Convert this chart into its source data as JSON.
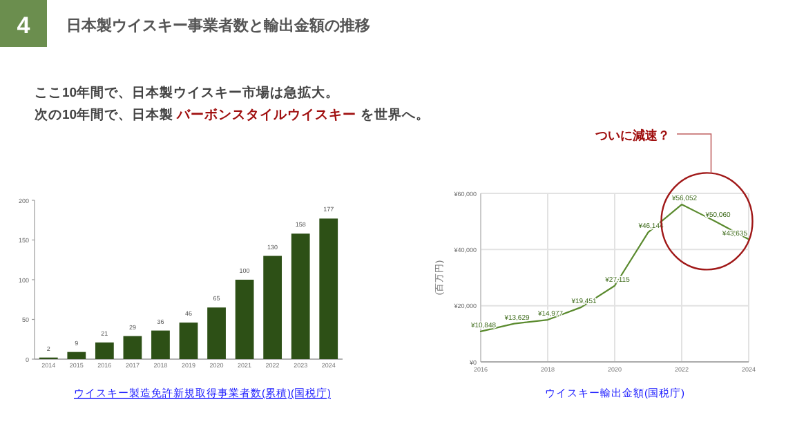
{
  "chart_data": [
    {
      "type": "bar",
      "title": "日本製ウイスキー事業者数と輸出金額の推移",
      "annotations": [
        "4",
        "ここ10年間で、日本製ウイスキー市場は急拡大。",
        "次の10年間で、日本製",
        "バーボンスタイルウイスキー",
        "を世界へ。",
        "ウイスキー製造免許新規取得事業者数(累積)(国税庁)"
      ],
      "categories": [
        "2014",
        "2015",
        "2016",
        "2017",
        "2018",
        "2019",
        "2020",
        "2021",
        "2022",
        "2023",
        "2024"
      ],
      "values": [
        2,
        9,
        21,
        29,
        36,
        46,
        65,
        100,
        130,
        158,
        177
      ],
      "color": "#2d5016",
      "data_labels": true,
      "grid": false,
      "ylim": [
        0,
        200
      ],
      "yticks": [
        0,
        50,
        100,
        150,
        200
      ]
    },
    {
      "type": "line",
      "ylabel": "(百万円)",
      "annotations": [
        "ウイスキー輸出金額(国税庁)",
        "ついに減速？"
      ],
      "x": [
        2016,
        2017,
        2018,
        2019,
        2020,
        2021,
        2022,
        2023,
        2024
      ],
      "values": [
        10848,
        13629,
        14977,
        19451,
        27115,
        46144,
        56052,
        50060,
        43635
      ],
      "value_labels": [
        "¥10,848",
        "¥13,629",
        "¥14,977",
        "¥19,451",
        "¥27,115",
        "¥46,144",
        "¥56,052",
        "¥50,060",
        "¥43,635"
      ],
      "color": "#5a8a2e",
      "grid": true,
      "xlim": [
        2016,
        2024
      ],
      "xticks": [
        2016,
        2018,
        2020,
        2022,
        2024
      ],
      "ylim": [
        0,
        60000
      ],
      "yticks": [
        {
          "value": 0,
          "label": "¥0"
        },
        {
          "value": 20000,
          "label": "¥20,000"
        },
        {
          "value": 40000,
          "label": "¥40,000"
        },
        {
          "value": 60000,
          "label": "¥60,000"
        }
      ]
    }
  ]
}
